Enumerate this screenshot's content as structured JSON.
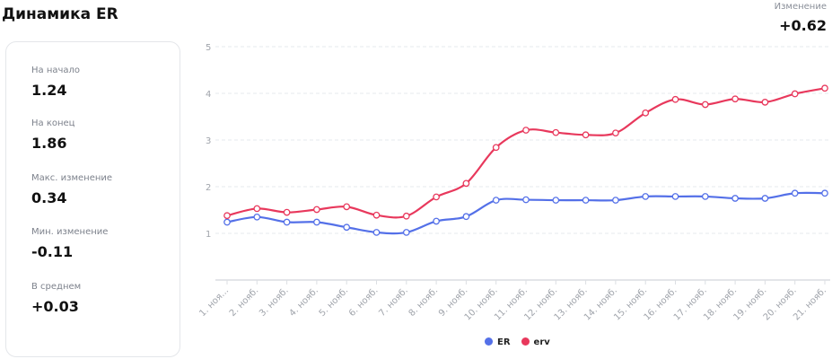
{
  "title": "Динамика ER",
  "change": {
    "label": "Изменение",
    "value": "+0.62"
  },
  "stats": [
    {
      "label": "На начало",
      "value": "1.24"
    },
    {
      "label": "На конец",
      "value": "1.86"
    },
    {
      "label": "Макс. изменение",
      "value": "0.34"
    },
    {
      "label": "Мин. изменение",
      "value": "-0.11"
    },
    {
      "label": "В среднем",
      "value": "+0.03"
    }
  ],
  "chart_data": {
    "type": "line",
    "categories": [
      "1. ноя...",
      "2. нояб.",
      "3. нояб.",
      "4. нояб.",
      "5. нояб.",
      "6. нояб.",
      "7. нояб.",
      "8. нояб.",
      "9. нояб.",
      "10. нояб.",
      "11. нояб.",
      "12. нояб.",
      "13. нояб.",
      "14. нояб.",
      "15. нояб.",
      "16. нояб.",
      "17. нояб.",
      "18. нояб.",
      "19. нояб.",
      "20. нояб.",
      "21. нояб."
    ],
    "yticks": [
      "1",
      "2",
      "3",
      "4",
      "5"
    ],
    "ylim": [
      0,
      5
    ],
    "legend_position": "bottom-center",
    "series": [
      {
        "name": "ER",
        "color": "#5470e8",
        "values": [
          1.24,
          1.35,
          1.24,
          1.24,
          1.13,
          1.02,
          1.02,
          1.26,
          1.36,
          1.71,
          1.72,
          1.71,
          1.71,
          1.71,
          1.79,
          1.79,
          1.79,
          1.75,
          1.75,
          1.86,
          1.86
        ]
      },
      {
        "name": "erv",
        "color": "#e8385c",
        "values": [
          1.38,
          1.53,
          1.45,
          1.51,
          1.57,
          1.39,
          1.37,
          1.78,
          2.07,
          2.84,
          3.21,
          3.16,
          3.11,
          3.15,
          3.58,
          3.87,
          3.76,
          3.88,
          3.81,
          3.99,
          4.11
        ]
      }
    ]
  }
}
